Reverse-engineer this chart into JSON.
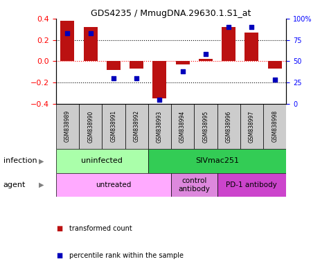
{
  "title": "GDS4235 / MmugDNA.29630.1.S1_at",
  "samples": [
    "GSM838989",
    "GSM838990",
    "GSM838991",
    "GSM838992",
    "GSM838993",
    "GSM838994",
    "GSM838995",
    "GSM838996",
    "GSM838997",
    "GSM838998"
  ],
  "bar_values": [
    0.38,
    0.32,
    -0.08,
    -0.07,
    -0.35,
    -0.03,
    0.02,
    0.32,
    0.27,
    -0.07
  ],
  "dot_values": [
    83,
    83,
    30,
    30,
    5,
    38,
    58,
    90,
    90,
    28
  ],
  "bar_color": "#bb1111",
  "dot_color": "#0000bb",
  "ylim": [
    -0.4,
    0.4
  ],
  "y2lim": [
    0,
    100
  ],
  "yticks": [
    -0.4,
    -0.2,
    0.0,
    0.2,
    0.4
  ],
  "y2ticks": [
    0,
    25,
    50,
    75,
    100
  ],
  "y2ticklabels": [
    "0",
    "25",
    "50",
    "75",
    "100%"
  ],
  "infection_groups": [
    {
      "label": "uninfected",
      "start": 0,
      "end": 4,
      "color": "#aaffaa"
    },
    {
      "label": "SIVmac251",
      "start": 4,
      "end": 10,
      "color": "#33cc55"
    }
  ],
  "agent_groups": [
    {
      "label": "untreated",
      "start": 0,
      "end": 5,
      "color": "#ffaaff"
    },
    {
      "label": "control\nantibody",
      "start": 5,
      "end": 7,
      "color": "#dd88dd"
    },
    {
      "label": "PD-1 antibody",
      "start": 7,
      "end": 10,
      "color": "#cc44cc"
    }
  ],
  "legend_items": [
    {
      "label": "transformed count",
      "color": "#bb1111"
    },
    {
      "label": "percentile rank within the sample",
      "color": "#0000bb"
    }
  ],
  "infection_label": "infection",
  "agent_label": "agent",
  "bar_width": 0.6,
  "sample_area_color": "#cccccc"
}
